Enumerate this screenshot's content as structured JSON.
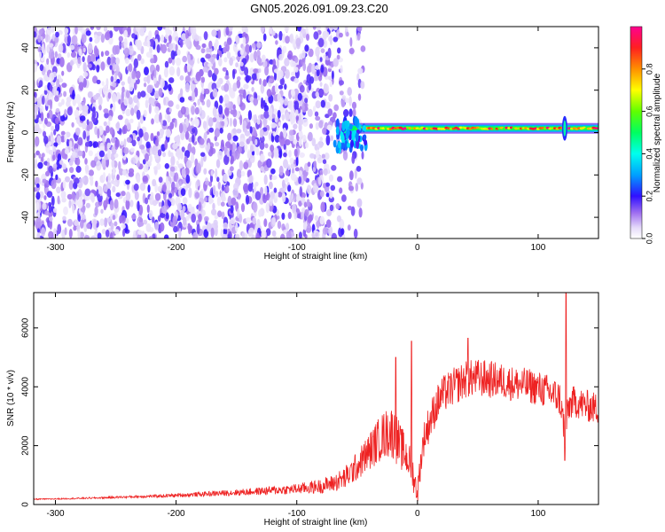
{
  "figure": {
    "title": "GN05.2026.091.09.23.C20",
    "colors": {
      "background": "#ffffff",
      "axes": "#000000",
      "snr_line": "#ee2222",
      "spec_low": "#d9c8f5",
      "spec_mid": "#7a2de0"
    }
  },
  "chart_data": [
    {
      "type": "heatmap",
      "title": "GN05.2026.091.09.23.C20",
      "xlabel": "Height of straight line (km)",
      "ylabel": "Frequency (Hz)",
      "xlim": [
        -318,
        150
      ],
      "ylim": [
        -50,
        50
      ],
      "xticks": [
        -300,
        -200,
        -100,
        0,
        100
      ],
      "yticks": [
        -40,
        -20,
        0,
        20,
        40
      ],
      "xtick_labels": [
        "-300",
        "-200",
        "-100",
        "0",
        "100"
      ],
      "ytick_labels": [
        "-40",
        "-20",
        "0",
        "20",
        "40"
      ],
      "grid": false,
      "colorbar": {
        "label": "Normalized spectral amplitude",
        "range": [
          0,
          1
        ],
        "ticks": [
          0.0,
          0.2,
          0.4,
          0.6,
          0.8
        ],
        "tick_labels": [
          "0.0",
          "0.2",
          "0.4",
          "0.6",
          "0.8"
        ],
        "colormap": "rainbow: white-lavender-purple-blue-cyan-green-yellow-orange-red-magenta"
      },
      "features": {
        "noise_region_x": [
          -318,
          -70
        ],
        "noise_amplitude_range": [
          0.0,
          0.2
        ],
        "signal_line_x": [
          -70,
          150
        ],
        "signal_line_frequency_hz": 2,
        "signal_amplitude_range": [
          0.5,
          1.0
        ],
        "spikes_x": [
          -60,
          122
        ]
      }
    },
    {
      "type": "line",
      "xlabel": "Height of straight line (km)",
      "ylabel": "SNR (10 * v/v)",
      "xlim": [
        -318,
        150
      ],
      "ylim": [
        0,
        7200
      ],
      "xticks": [
        -300,
        -200,
        -100,
        0,
        100
      ],
      "yticks": [
        0,
        2000,
        4000,
        6000
      ],
      "xtick_labels": [
        "-300",
        "-200",
        "-100",
        "0",
        "100"
      ],
      "ytick_labels": [
        "0",
        "2000",
        "4000",
        "6000"
      ],
      "grid": false,
      "series": [
        {
          "color": "#ee2222",
          "x": [
            -318,
            -300,
            -280,
            -260,
            -240,
            -220,
            -200,
            -180,
            -160,
            -140,
            -120,
            -100,
            -80,
            -70,
            -60,
            -50,
            -40,
            -30,
            -22,
            -18,
            -15,
            -10,
            -5,
            -2,
            0,
            2,
            5,
            10,
            15,
            20,
            30,
            40,
            50,
            60,
            70,
            80,
            90,
            100,
            110,
            118,
            122,
            126,
            130,
            140,
            150
          ],
          "values": [
            180,
            190,
            210,
            230,
            260,
            280,
            310,
            350,
            390,
            430,
            480,
            530,
            620,
            720,
            900,
            1300,
            1800,
            2300,
            2500,
            2300,
            2000,
            1700,
            1300,
            700,
            400,
            1200,
            2200,
            2800,
            3300,
            3700,
            4000,
            4250,
            4300,
            4250,
            4200,
            4100,
            4050,
            3950,
            3800,
            3600,
            2500,
            3400,
            3500,
            3350,
            3250
          ],
          "noise_band": [
            20,
            20,
            25,
            30,
            40,
            50,
            60,
            80,
            100,
            120,
            150,
            180,
            250,
            300,
            400,
            500,
            650,
            800,
            900,
            900,
            800,
            700,
            600,
            500,
            400,
            500,
            600,
            650,
            650,
            650,
            650,
            650,
            650,
            650,
            600,
            600,
            600,
            600,
            600,
            600,
            600,
            550,
            550,
            550,
            550
          ],
          "spikes": [
            {
              "x": -18,
              "y": 5000
            },
            {
              "x": -5,
              "y": 5550
            },
            {
              "x": 42,
              "y": 5650
            },
            {
              "x": 123,
              "y": 7200
            },
            {
              "x": 122,
              "y": 1500
            }
          ]
        }
      ]
    }
  ]
}
